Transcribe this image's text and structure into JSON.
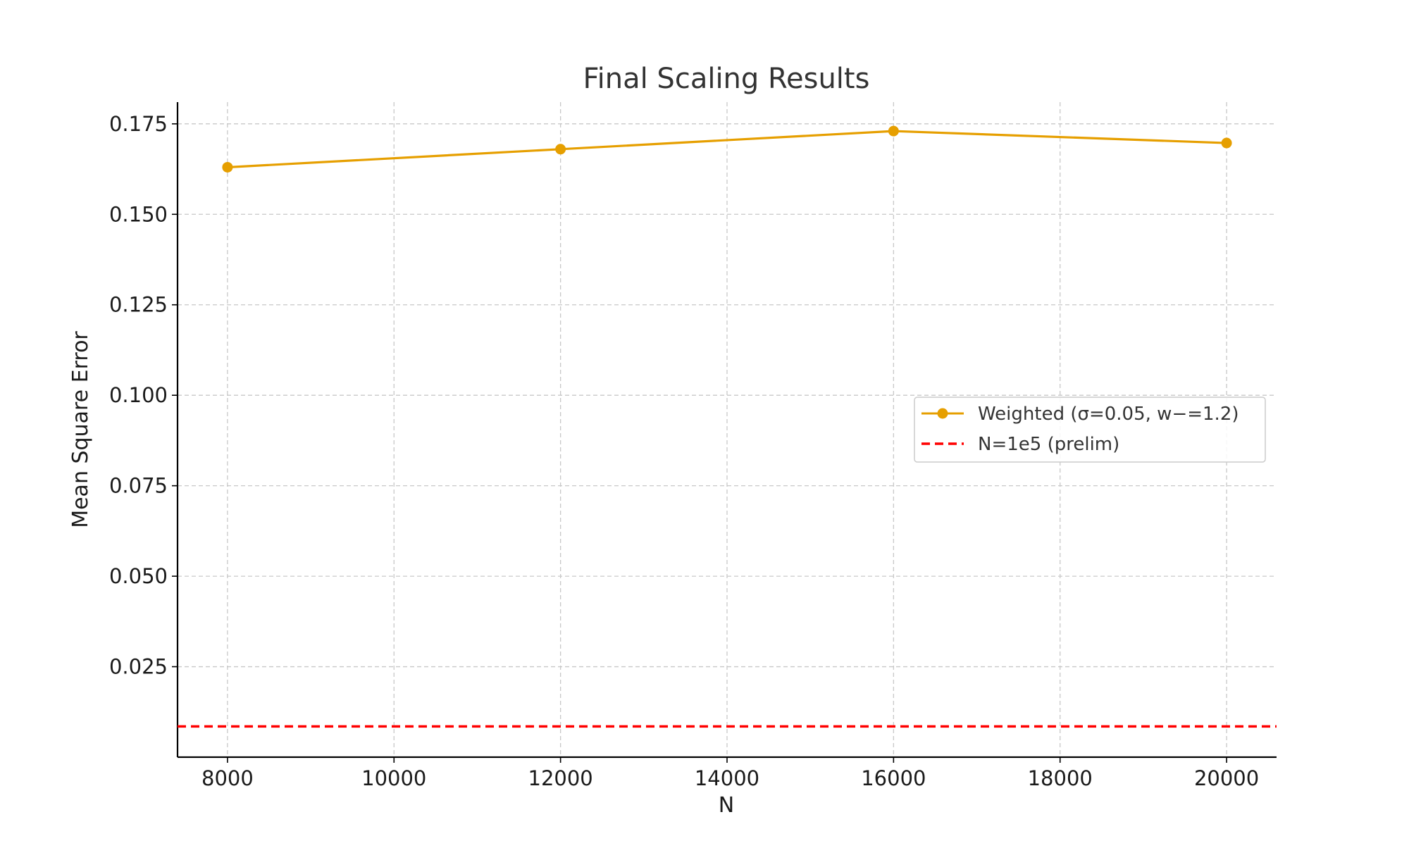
{
  "chart_data": {
    "type": "line",
    "title": "Final Scaling Results",
    "xlabel": "N",
    "ylabel": "Mean Square Error",
    "xlim": [
      7400,
      20600
    ],
    "ylim": [
      0,
      0.181
    ],
    "xticks": [
      8000,
      10000,
      12000,
      14000,
      16000,
      18000,
      20000
    ],
    "yticks": [
      0.025,
      0.05,
      0.075,
      0.1,
      0.125,
      0.15,
      0.175
    ],
    "ytick_labels": [
      "0.025",
      "0.050",
      "0.075",
      "0.100",
      "0.125",
      "0.150",
      "0.175"
    ],
    "grid": true,
    "legend_position": "center-right",
    "series": [
      {
        "name": "Weighted (σ=0.05, w−=1.2)",
        "x": [
          8000,
          12000,
          16000,
          20000
        ],
        "values": [
          0.163,
          0.168,
          0.173,
          0.1697
        ],
        "color": "#e69f00",
        "style": "solid",
        "marker": "circle"
      }
    ],
    "reference_lines": [
      {
        "name": "N=1e5 (prelim)",
        "y": 0.0085,
        "color": "#ff0000",
        "style": "dashed"
      }
    ]
  }
}
